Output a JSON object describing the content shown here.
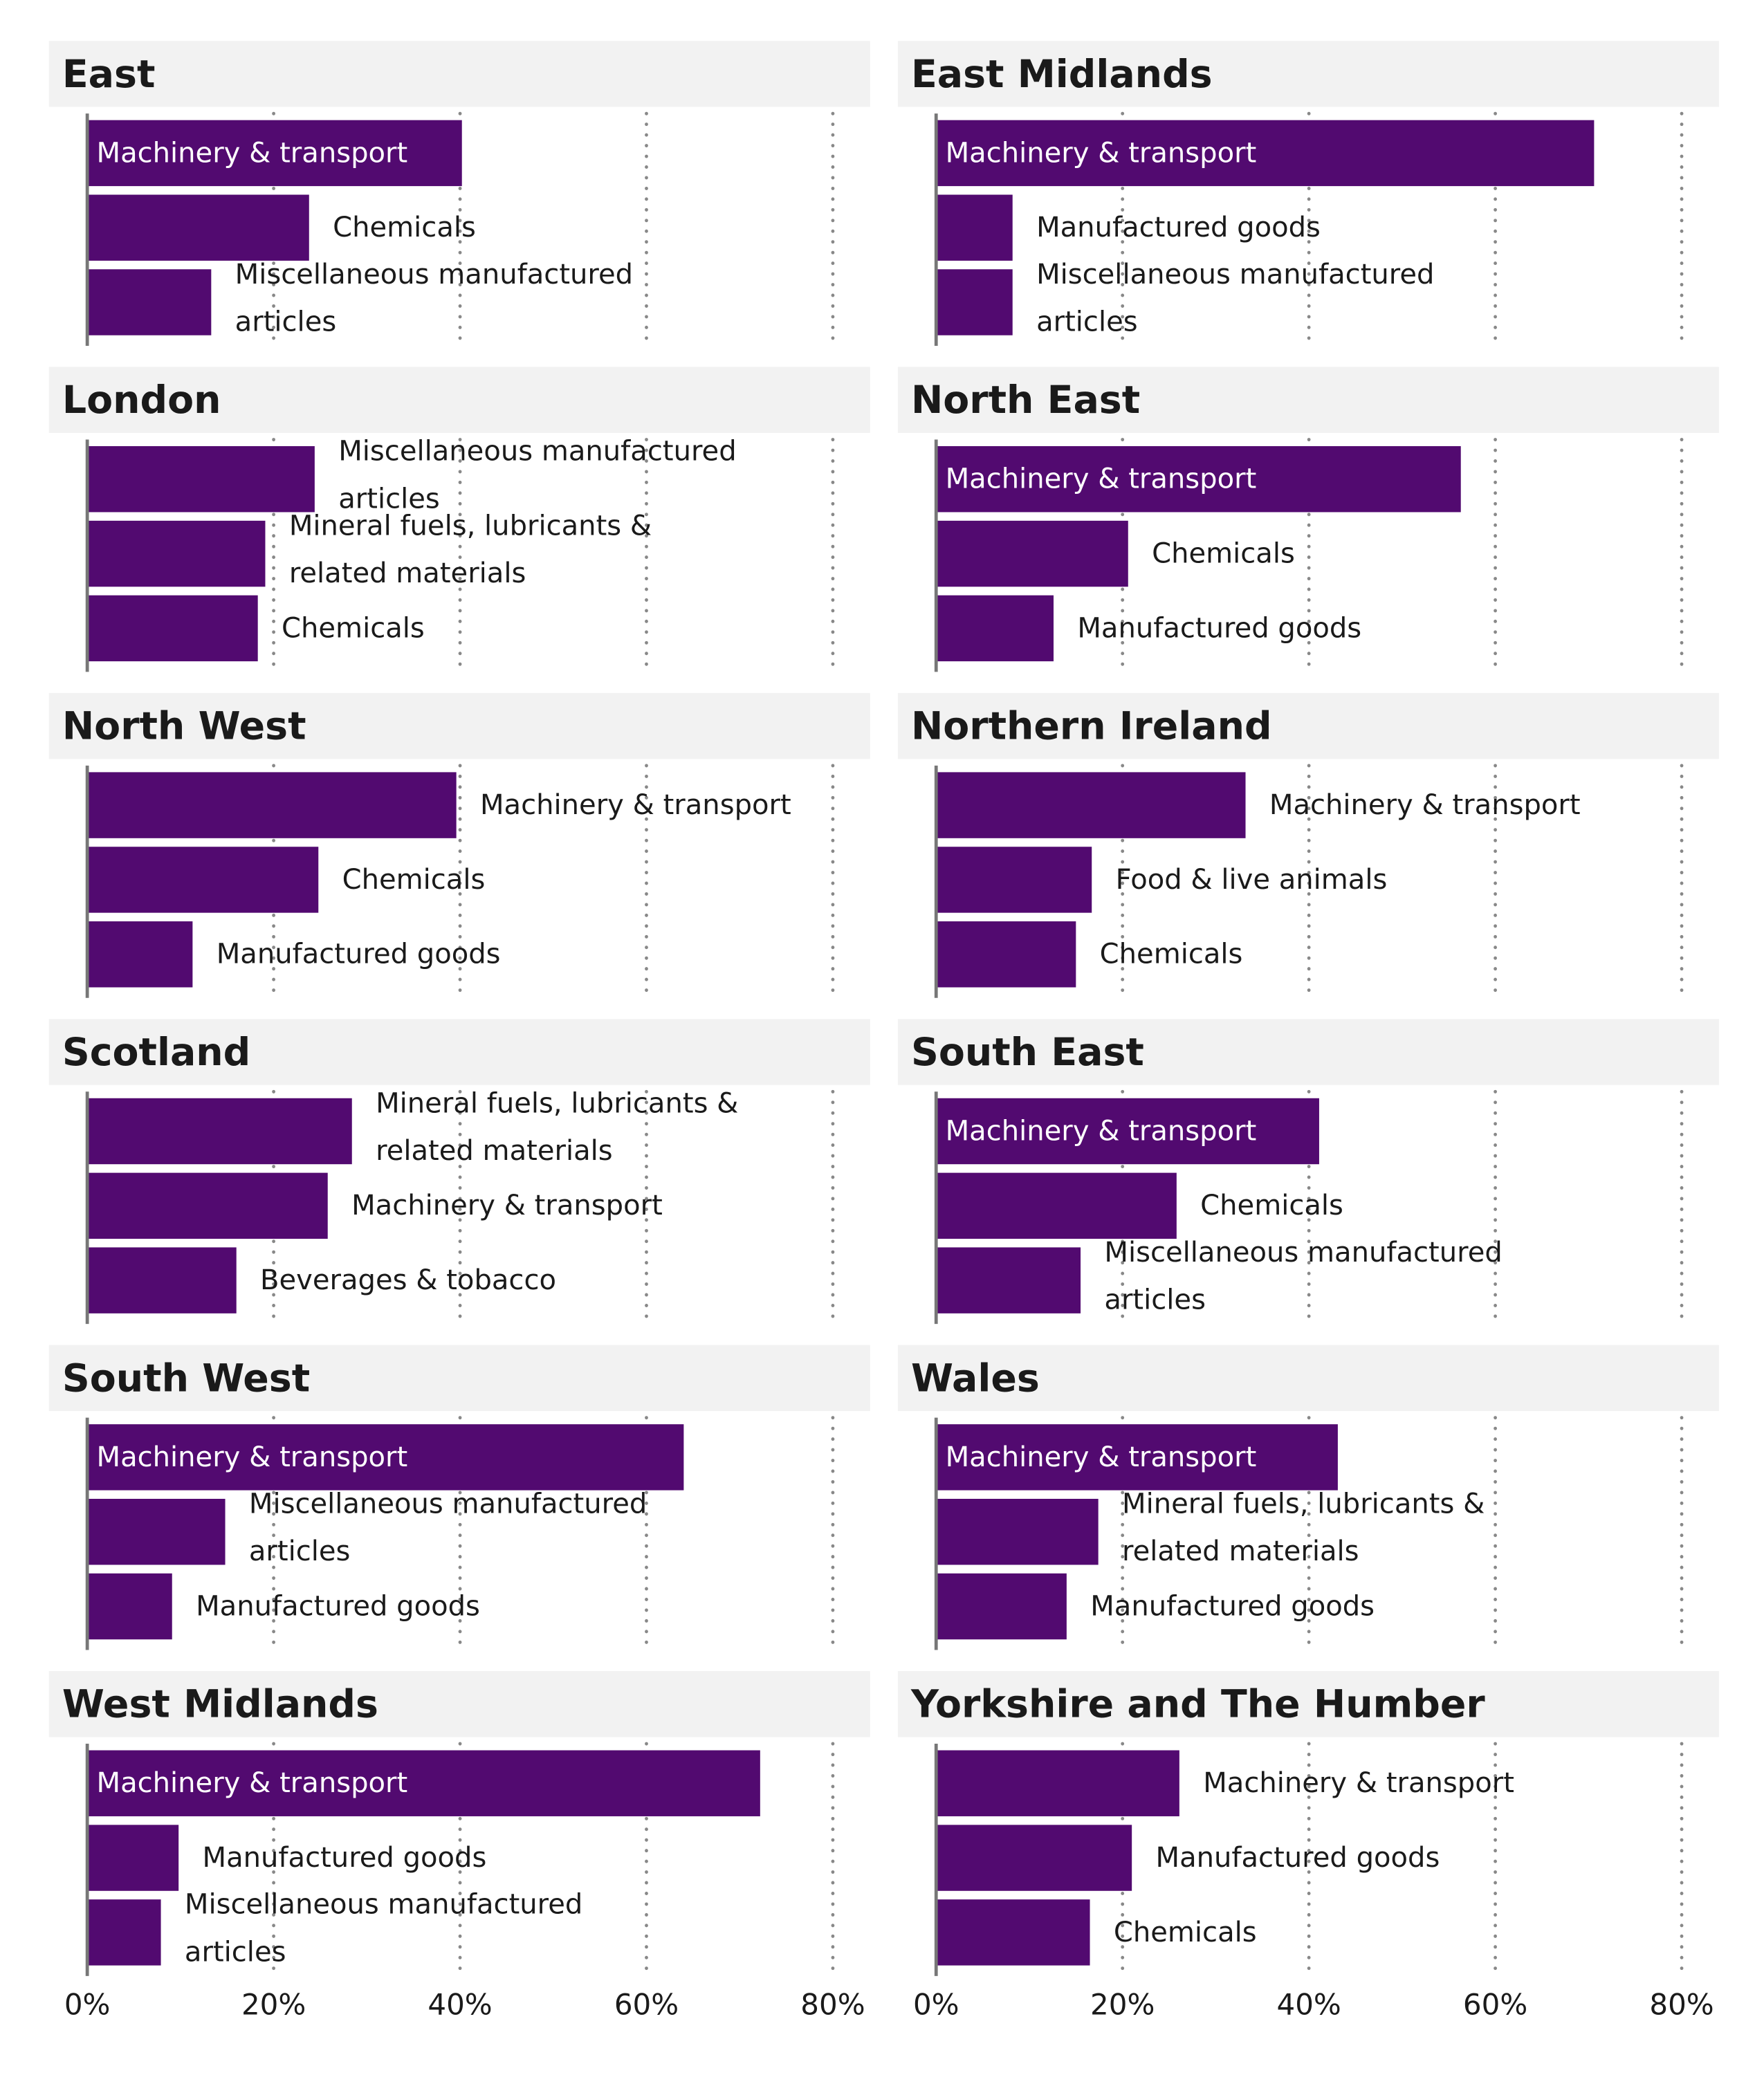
{
  "chart_data": [
    {
      "type": "bar",
      "orientation": "horizontal",
      "title": "East",
      "categories": [
        "Machinery & transport",
        "Chemicals",
        "Miscellaneous manufactured articles"
      ],
      "values": [
        40.2,
        23.8,
        13.3
      ],
      "color": "#520a70",
      "xlim": [
        0,
        84
      ],
      "xticks": [
        {
          "value": 0,
          "label": "0%"
        },
        {
          "value": 20,
          "label": "20%"
        },
        {
          "value": 40,
          "label": "40%"
        },
        {
          "value": 60,
          "label": "60%"
        },
        {
          "value": 80,
          "label": "80%"
        }
      ],
      "grid": true
    },
    {
      "type": "bar",
      "orientation": "horizontal",
      "title": "East Midlands",
      "categories": [
        "Machinery & transport",
        "Manufactured goods",
        "Miscellaneous manufactured articles"
      ],
      "values": [
        70.6,
        8.2,
        8.2
      ],
      "color": "#520a70",
      "xlim": [
        0,
        84
      ],
      "xticks": [
        {
          "value": 0,
          "label": "0%"
        },
        {
          "value": 20,
          "label": "20%"
        },
        {
          "value": 40,
          "label": "40%"
        },
        {
          "value": 60,
          "label": "60%"
        },
        {
          "value": 80,
          "label": "80%"
        }
      ],
      "grid": true
    },
    {
      "type": "bar",
      "orientation": "horizontal",
      "title": "London",
      "categories": [
        "Miscellaneous manufactured articles",
        "Mineral fuels, lubricants & related materials",
        "Chemicals"
      ],
      "values": [
        24.4,
        19.1,
        18.3
      ],
      "color": "#520a70",
      "xlim": [
        0,
        84
      ],
      "xticks": [
        {
          "value": 0,
          "label": "0%"
        },
        {
          "value": 20,
          "label": "20%"
        },
        {
          "value": 40,
          "label": "40%"
        },
        {
          "value": 60,
          "label": "60%"
        },
        {
          "value": 80,
          "label": "80%"
        }
      ],
      "grid": true
    },
    {
      "type": "bar",
      "orientation": "horizontal",
      "title": "North East",
      "categories": [
        "Machinery & transport",
        "Chemicals",
        "Manufactured goods"
      ],
      "values": [
        56.3,
        20.6,
        12.6
      ],
      "color": "#520a70",
      "xlim": [
        0,
        84
      ],
      "xticks": [
        {
          "value": 0,
          "label": "0%"
        },
        {
          "value": 20,
          "label": "20%"
        },
        {
          "value": 40,
          "label": "40%"
        },
        {
          "value": 60,
          "label": "60%"
        },
        {
          "value": 80,
          "label": "80%"
        }
      ],
      "grid": true
    },
    {
      "type": "bar",
      "orientation": "horizontal",
      "title": "North West",
      "categories": [
        "Machinery & transport",
        "Chemicals",
        "Manufactured goods"
      ],
      "values": [
        39.6,
        24.8,
        11.3
      ],
      "color": "#520a70",
      "xlim": [
        0,
        84
      ],
      "xticks": [
        {
          "value": 0,
          "label": "0%"
        },
        {
          "value": 20,
          "label": "20%"
        },
        {
          "value": 40,
          "label": "40%"
        },
        {
          "value": 60,
          "label": "60%"
        },
        {
          "value": 80,
          "label": "80%"
        }
      ],
      "grid": true
    },
    {
      "type": "bar",
      "orientation": "horizontal",
      "title": "Northern Ireland",
      "categories": [
        "Machinery & transport",
        "Food & live animals",
        "Chemicals"
      ],
      "values": [
        33.2,
        16.7,
        15
      ],
      "color": "#520a70",
      "xlim": [
        0,
        84
      ],
      "xticks": [
        {
          "value": 0,
          "label": "0%"
        },
        {
          "value": 20,
          "label": "20%"
        },
        {
          "value": 40,
          "label": "40%"
        },
        {
          "value": 60,
          "label": "60%"
        },
        {
          "value": 80,
          "label": "80%"
        }
      ],
      "grid": true
    },
    {
      "type": "bar",
      "orientation": "horizontal",
      "title": "Scotland",
      "categories": [
        "Mineral fuels, lubricants & related materials",
        "Machinery & transport",
        "Beverages & tobacco"
      ],
      "values": [
        28.4,
        25.8,
        16
      ],
      "color": "#520a70",
      "xlim": [
        0,
        84
      ],
      "xticks": [
        {
          "value": 0,
          "label": "0%"
        },
        {
          "value": 20,
          "label": "20%"
        },
        {
          "value": 40,
          "label": "40%"
        },
        {
          "value": 60,
          "label": "60%"
        },
        {
          "value": 80,
          "label": "80%"
        }
      ],
      "grid": true
    },
    {
      "type": "bar",
      "orientation": "horizontal",
      "title": "South East",
      "categories": [
        "Machinery & transport",
        "Chemicals",
        "Miscellaneous manufactured articles"
      ],
      "values": [
        41.1,
        25.8,
        15.5
      ],
      "color": "#520a70",
      "xlim": [
        0,
        84
      ],
      "xticks": [
        {
          "value": 0,
          "label": "0%"
        },
        {
          "value": 20,
          "label": "20%"
        },
        {
          "value": 40,
          "label": "40%"
        },
        {
          "value": 60,
          "label": "60%"
        },
        {
          "value": 80,
          "label": "80%"
        }
      ],
      "grid": true
    },
    {
      "type": "bar",
      "orientation": "horizontal",
      "title": "South West",
      "categories": [
        "Machinery & transport",
        "Miscellaneous manufactured articles",
        "Manufactured goods"
      ],
      "values": [
        64,
        14.8,
        9.1
      ],
      "color": "#520a70",
      "xlim": [
        0,
        84
      ],
      "xticks": [
        {
          "value": 0,
          "label": "0%"
        },
        {
          "value": 20,
          "label": "20%"
        },
        {
          "value": 40,
          "label": "40%"
        },
        {
          "value": 60,
          "label": "60%"
        },
        {
          "value": 80,
          "label": "80%"
        }
      ],
      "grid": true
    },
    {
      "type": "bar",
      "orientation": "horizontal",
      "title": "Wales",
      "categories": [
        "Machinery & transport",
        "Mineral fuels, lubricants & related materials",
        "Manufactured goods"
      ],
      "values": [
        43.1,
        17.4,
        14
      ],
      "color": "#520a70",
      "xlim": [
        0,
        84
      ],
      "xticks": [
        {
          "value": 0,
          "label": "0%"
        },
        {
          "value": 20,
          "label": "20%"
        },
        {
          "value": 40,
          "label": "40%"
        },
        {
          "value": 60,
          "label": "60%"
        },
        {
          "value": 80,
          "label": "80%"
        }
      ],
      "grid": true
    },
    {
      "type": "bar",
      "orientation": "horizontal",
      "title": "West Midlands",
      "categories": [
        "Machinery & transport",
        "Manufactured goods",
        "Miscellaneous manufactured articles"
      ],
      "values": [
        72.2,
        9.8,
        7.9
      ],
      "color": "#520a70",
      "xlim": [
        0,
        84
      ],
      "xticks": [
        {
          "value": 0,
          "label": "0%"
        },
        {
          "value": 20,
          "label": "20%"
        },
        {
          "value": 40,
          "label": "40%"
        },
        {
          "value": 60,
          "label": "60%"
        },
        {
          "value": 80,
          "label": "80%"
        }
      ],
      "grid": true
    },
    {
      "type": "bar",
      "orientation": "horizontal",
      "title": "Yorkshire and The Humber",
      "categories": [
        "Machinery & transport",
        "Manufactured goods",
        "Chemicals"
      ],
      "values": [
        26.1,
        21,
        16.5
      ],
      "color": "#520a70",
      "xlim": [
        0,
        84
      ],
      "xticks": [
        {
          "value": 0,
          "label": "0%"
        },
        {
          "value": 20,
          "label": "20%"
        },
        {
          "value": 40,
          "label": "40%"
        },
        {
          "value": 60,
          "label": "60%"
        },
        {
          "value": 80,
          "label": "80%"
        }
      ],
      "grid": true
    }
  ]
}
